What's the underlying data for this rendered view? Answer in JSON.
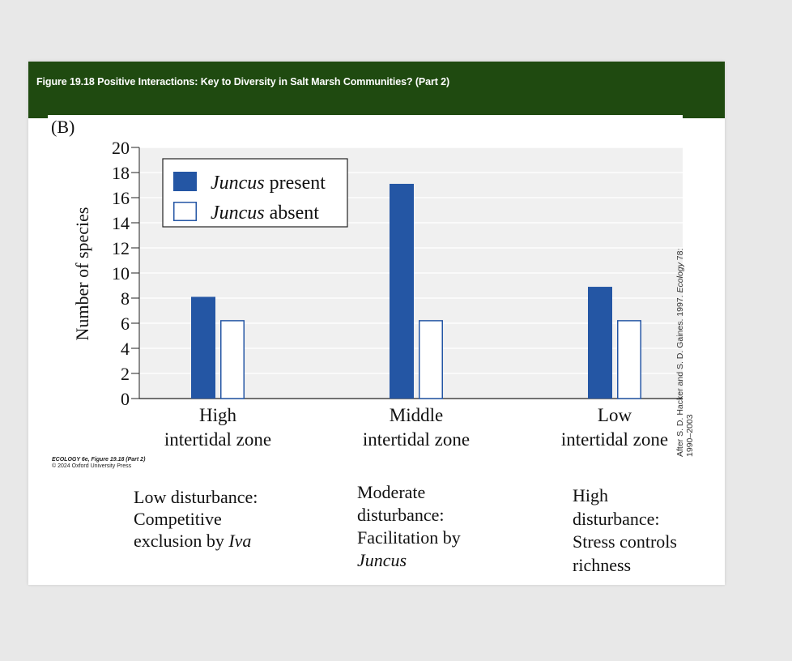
{
  "header": {
    "title": "Figure 19.18  Positive Interactions: Key to Diversity in Salt Marsh Communities? (Part 2)"
  },
  "panel_label": "(B)",
  "credit": {
    "line1": "ECOLOGY 6e, Figure 19.18 (Part 2)",
    "line2": "© 2024 Oxford University Press"
  },
  "side_credit": {
    "line1_prefix": "After S. D. Hacker and S. D. Gaines. 1997. ",
    "line1_source": "Ecology",
    "line1_suffix": " 78:",
    "line2": "1990–2003"
  },
  "notes": [
    {
      "lines": [
        "Low disturbance:",
        "Competitive"
      ],
      "prefix": "exclusion by ",
      "emph": "Iva"
    },
    {
      "lines": [
        "Moderate",
        "disturbance:",
        "Facilitation by"
      ],
      "prefix": "",
      "emph": "Juncus"
    },
    {
      "lines": [
        "High",
        "disturbance:",
        "Stress controls",
        "richness"
      ],
      "prefix": "",
      "emph": ""
    }
  ],
  "colors": {
    "header_bg": "#1f4a10",
    "present": "#2456a4",
    "absent_fill": "#ffffff",
    "absent_stroke": "#2456a4",
    "plot_bg": "#f0f0f0"
  },
  "chart_data": {
    "type": "bar",
    "ylabel": "Number of species",
    "ylim": [
      0,
      20
    ],
    "yticks": [
      "0",
      "2",
      "4",
      "6",
      "8",
      "10",
      "12",
      "14",
      "16",
      "18",
      "20"
    ],
    "categories": [
      [
        "High",
        "intertidal zone"
      ],
      [
        "Middle",
        "intertidal zone"
      ],
      [
        "Low",
        "intertidal zone"
      ]
    ],
    "series": [
      {
        "name": "present",
        "legend_italic": "Juncus",
        "legend_rest": " present",
        "values": [
          8.1,
          17.1,
          8.9
        ]
      },
      {
        "name": "absent",
        "legend_italic": "Juncus",
        "legend_rest": " absent",
        "values": [
          6.2,
          6.2,
          6.2
        ]
      }
    ],
    "legend": "top-left",
    "grid": true
  }
}
